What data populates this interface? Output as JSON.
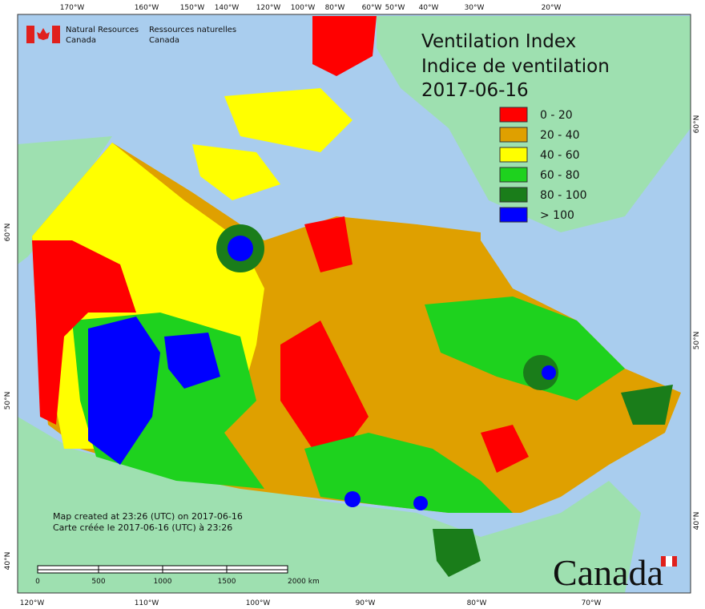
{
  "header": {
    "org_en": "Natural Resources",
    "org_en2": "Canada",
    "org_fr": "Ressources naturelles",
    "org_fr2": "Canada"
  },
  "title": {
    "line1": "Ventilation Index",
    "line2": "Indice de ventilation",
    "date": "2017-06-16"
  },
  "legend": [
    {
      "label": "0 - 20",
      "color": "#ff0000"
    },
    {
      "label": "20 - 40",
      "color": "#dfa000"
    },
    {
      "label": "40 - 60",
      "color": "#ffff00"
    },
    {
      "label": "60 - 80",
      "color": "#1ed21e"
    },
    {
      "label": "80 - 100",
      "color": "#1a7d1a"
    },
    {
      "label": "> 100",
      "color": "#0000ff"
    }
  ],
  "top_labels": [
    "170°W",
    "160°W",
    "150°W",
    "140°W",
    "120°W",
    "100°W",
    "80°W",
    "60°W",
    "50°W",
    "40°W",
    "30°W",
    "20°W"
  ],
  "bottom_labels": [
    "120°W",
    "110°W",
    "100°W",
    "90°W",
    "80°W",
    "70°W"
  ],
  "left_labels": [
    "60°N",
    "50°N",
    "40°N"
  ],
  "right_labels": [
    "60°N",
    "50°N",
    "40°N"
  ],
  "scale_bar": {
    "labels": [
      "0",
      "500",
      "1000",
      "1500",
      "2000  km"
    ]
  },
  "credits": [
    "Map created at 23:26 (UTC) on 2017-06-16",
    "Carte créée le 2017-06-16 (UTC) à 23:26"
  ],
  "wordmark": "Canada"
}
